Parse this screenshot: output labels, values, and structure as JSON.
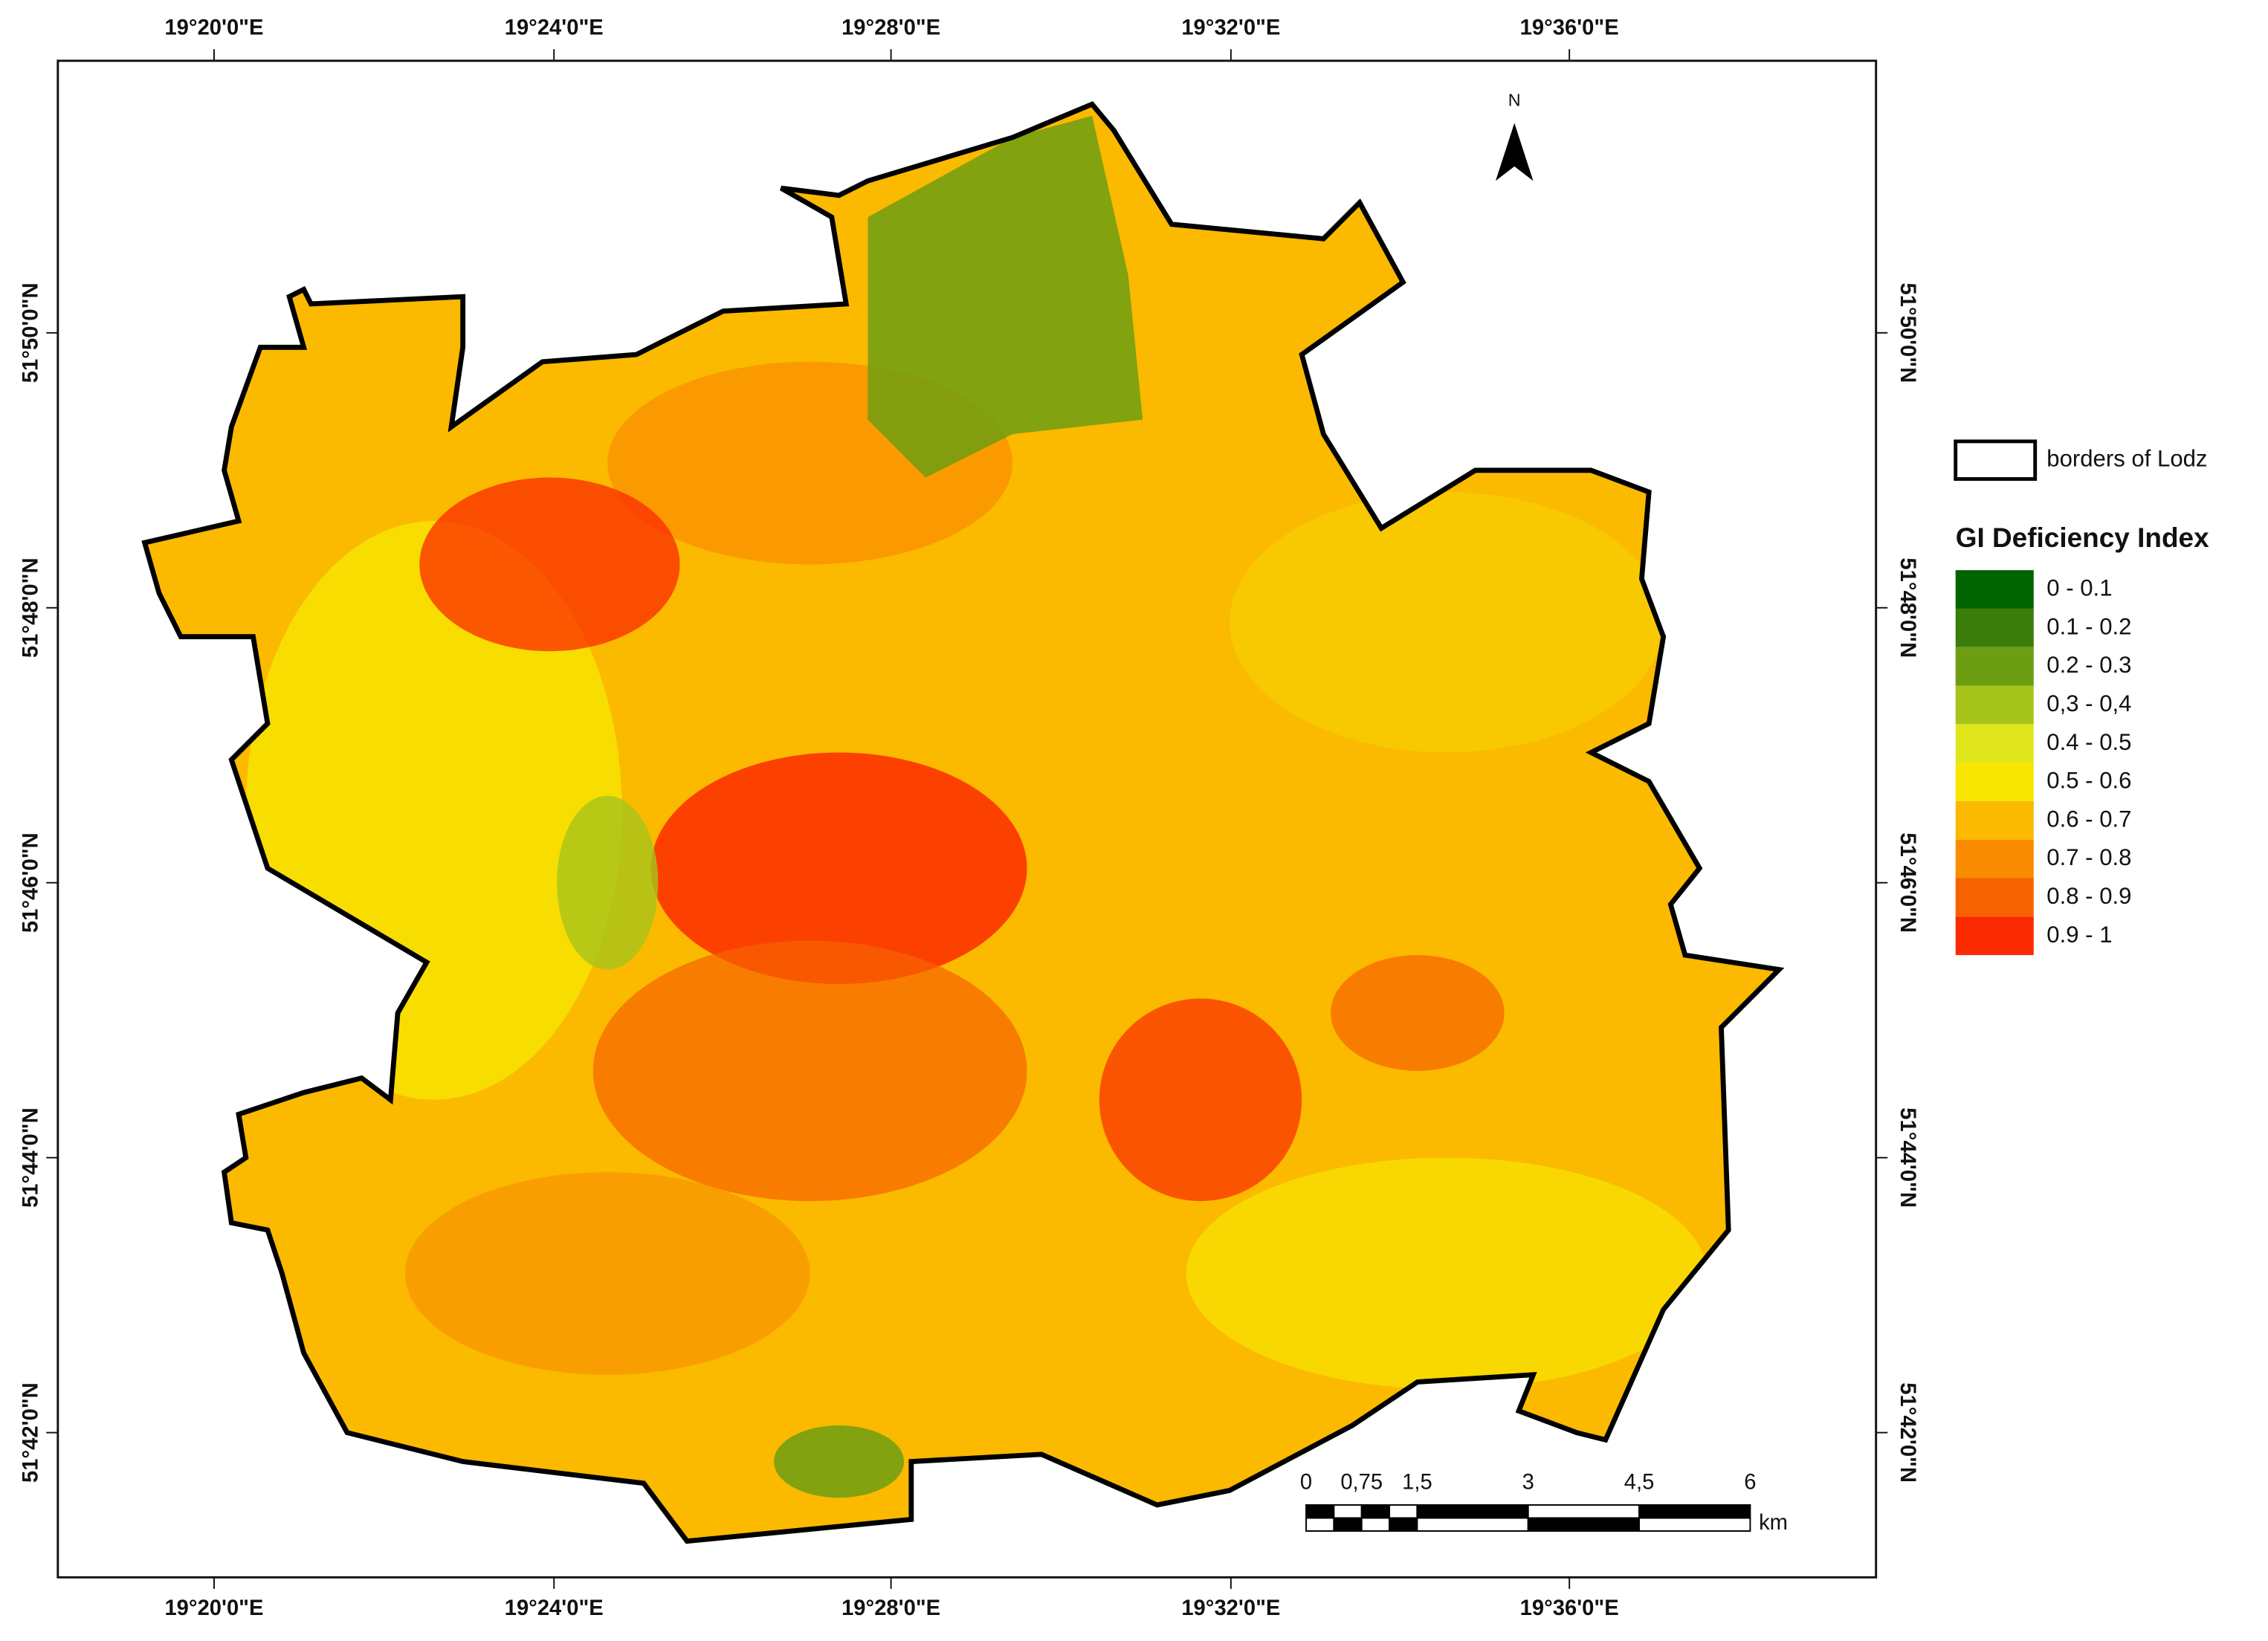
{
  "map": {
    "longitude_labels": [
      "19°20'0\"E",
      "19°24'0\"E",
      "19°28'0\"E",
      "19°32'0\"E",
      "19°36'0\"E"
    ],
    "latitude_labels": [
      "51°50'0\"N",
      "51°48'0\"N",
      "51°46'0\"N",
      "51°44'0\"N",
      "51°42'0\"N"
    ],
    "north_label": "N",
    "scale_bar": {
      "labels": [
        "0",
        "0,75",
        "1,5",
        "3",
        "4,5",
        "6"
      ],
      "unit": "km"
    }
  },
  "legend": {
    "border_label": "borders of Lodz",
    "title": "GI Deficiency Index",
    "items": [
      {
        "label": "0 - 0.1",
        "color": "#006400"
      },
      {
        "label": "0.1 - 0.2",
        "color": "#3a7d0a"
      },
      {
        "label": "0.2 - 0.3",
        "color": "#6d9e12"
      },
      {
        "label": "0,3 - 0,4",
        "color": "#a6c41a"
      },
      {
        "label": "0.4 - 0.5",
        "color": "#dfe61c"
      },
      {
        "label": "0.5 - 0.6",
        "color": "#f7e600"
      },
      {
        "label": "0.6 - 0.7",
        "color": "#fbb900"
      },
      {
        "label": "0.7 - 0.8",
        "color": "#f98c00"
      },
      {
        "label": "0.8 - 0.9",
        "color": "#f76200"
      },
      {
        "label": "0.9 - 1",
        "color": "#fb2a00"
      }
    ]
  }
}
